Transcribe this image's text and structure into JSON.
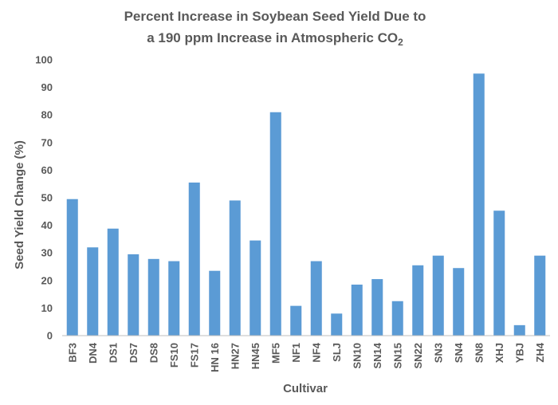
{
  "chart_data": {
    "type": "bar",
    "title_line1": "Percent Increase in Soybean Seed Yield Due to",
    "title_line2_prefix": "a 190 ppm Increase in Atmospheric CO",
    "title_line2_subscript": "2",
    "xlabel": "Cultivar",
    "ylabel": "Seed Yield Change (%)",
    "ylim": [
      0,
      100
    ],
    "yticks": [
      0,
      10,
      20,
      30,
      40,
      50,
      60,
      70,
      80,
      90,
      100
    ],
    "grid": false,
    "bar_color": "#5b9bd5",
    "categories": [
      "BF3",
      "DN4",
      "DS1",
      "DS7",
      "DS8",
      "FS10",
      "FS17",
      "HN 16",
      "HN27",
      "HN45",
      "MF5",
      "NF1",
      "NF4",
      "SLJ",
      "SN10",
      "SN14",
      "SN15",
      "SN22",
      "SN3",
      "SN4",
      "SN8",
      "XHJ",
      "YBJ",
      "ZH4"
    ],
    "values": [
      49.5,
      32,
      38.8,
      29.5,
      27.8,
      27,
      55.5,
      23.5,
      49,
      34.5,
      81,
      10.8,
      27,
      8,
      18.5,
      20.5,
      12.5,
      25.5,
      29,
      24.5,
      95,
      45.3,
      3.8,
      29
    ]
  }
}
